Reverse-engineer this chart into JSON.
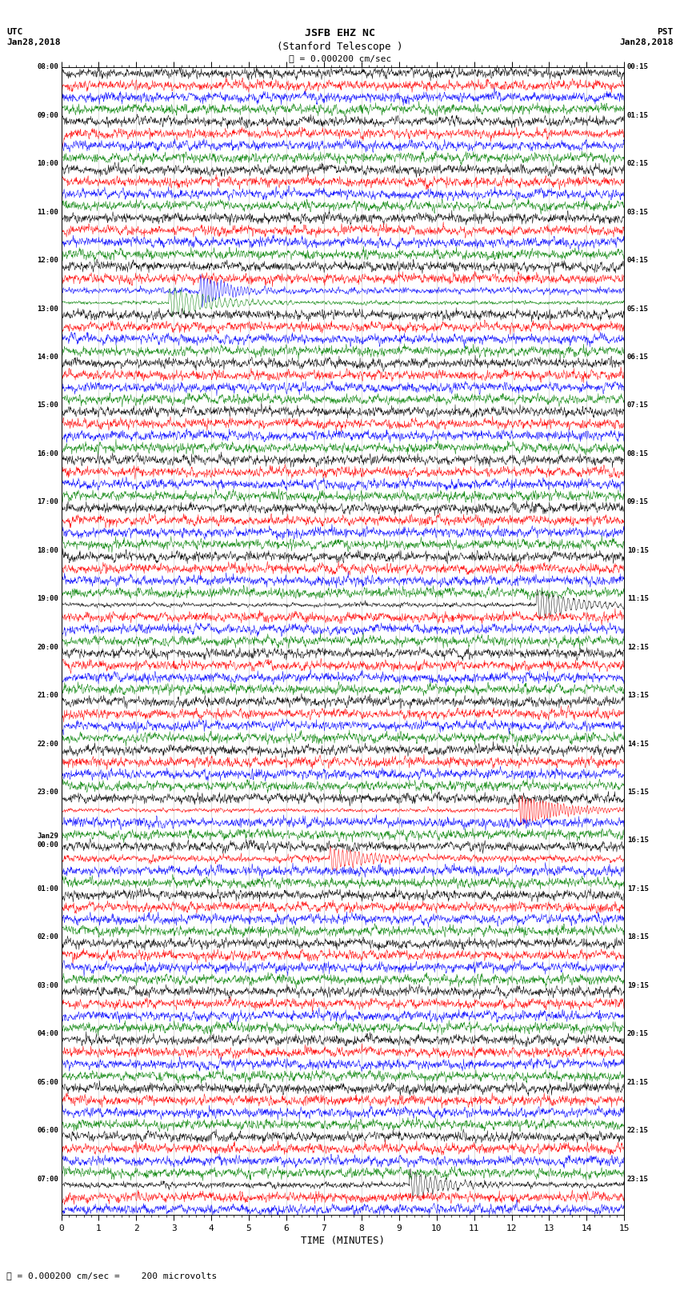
{
  "title_line1": "JSFB EHZ NC",
  "title_line2": "(Stanford Telescope )",
  "scale_label": "= 0.000200 cm/sec",
  "bottom_label": "= 0.000200 cm/sec =    200 microvolts",
  "xlabel": "TIME (MINUTES)",
  "utc_label": "UTC\nJan28,2018",
  "pst_label": "PST\nJan28,2018",
  "left_times_utc": [
    "08:00",
    "",
    "",
    "",
    "09:00",
    "",
    "",
    "",
    "10:00",
    "",
    "",
    "",
    "11:00",
    "",
    "",
    "",
    "12:00",
    "",
    "",
    "",
    "13:00",
    "",
    "",
    "",
    "14:00",
    "",
    "",
    "",
    "15:00",
    "",
    "",
    "",
    "16:00",
    "",
    "",
    "",
    "17:00",
    "",
    "",
    "",
    "18:00",
    "",
    "",
    "",
    "19:00",
    "",
    "",
    "",
    "20:00",
    "",
    "",
    "",
    "21:00",
    "",
    "",
    "",
    "22:00",
    "",
    "",
    "",
    "23:00",
    "",
    "",
    "",
    "Jan29\n00:00",
    "",
    "",
    "",
    "01:00",
    "",
    "",
    "",
    "02:00",
    "",
    "",
    "",
    "03:00",
    "",
    "",
    "",
    "04:00",
    "",
    "",
    "",
    "05:00",
    "",
    "",
    "",
    "06:00",
    "",
    "",
    "",
    "07:00",
    "",
    ""
  ],
  "right_times_pst": [
    "00:15",
    "",
    "",
    "",
    "01:15",
    "",
    "",
    "",
    "02:15",
    "",
    "",
    "",
    "03:15",
    "",
    "",
    "",
    "04:15",
    "",
    "",
    "",
    "05:15",
    "",
    "",
    "",
    "06:15",
    "",
    "",
    "",
    "07:15",
    "",
    "",
    "",
    "08:15",
    "",
    "",
    "",
    "09:15",
    "",
    "",
    "",
    "10:15",
    "",
    "",
    "",
    "11:15",
    "",
    "",
    "",
    "12:15",
    "",
    "",
    "",
    "13:15",
    "",
    "",
    "",
    "14:15",
    "",
    "",
    "",
    "15:15",
    "",
    "",
    "",
    "16:15",
    "",
    "",
    "",
    "17:15",
    "",
    "",
    "",
    "18:15",
    "",
    "",
    "",
    "19:15",
    "",
    "",
    "",
    "20:15",
    "",
    "",
    "",
    "21:15",
    "",
    "",
    "",
    "22:15",
    "",
    "",
    "",
    "23:15",
    "",
    ""
  ],
  "colors": [
    "black",
    "red",
    "blue",
    "green"
  ],
  "n_rows": 95,
  "n_points": 1800,
  "x_min": 0,
  "x_max": 15,
  "bg_color": "white",
  "seed": 42
}
